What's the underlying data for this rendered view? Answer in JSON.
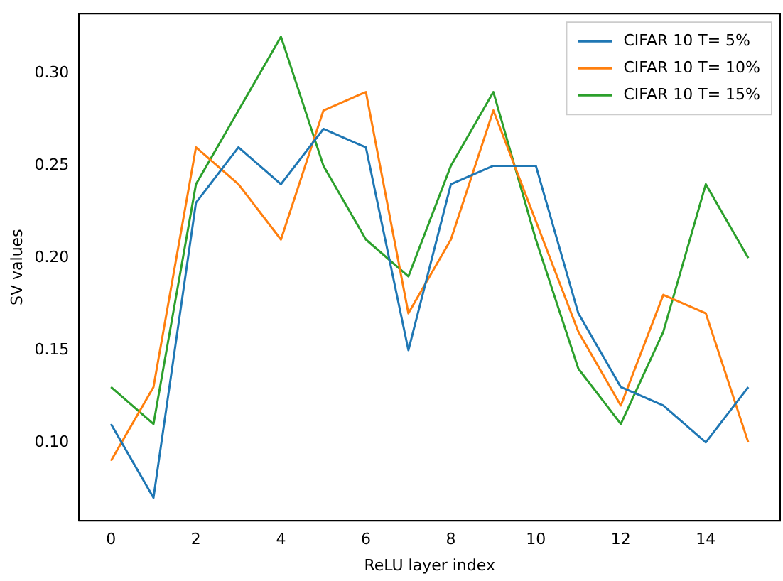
{
  "chart_data": {
    "type": "line",
    "xlabel": "ReLU layer index",
    "ylabel": "SV values",
    "x": [
      0,
      1,
      2,
      3,
      4,
      5,
      6,
      7,
      8,
      9,
      10,
      11,
      12,
      13,
      14,
      15
    ],
    "xlim": [
      -0.75,
      15.75
    ],
    "xticks": [
      0,
      2,
      4,
      6,
      8,
      10,
      12,
      14
    ],
    "ylim": [
      0.0575,
      0.3325
    ],
    "yticks": [
      {
        "value": 0.1,
        "label": "0.10"
      },
      {
        "value": 0.15,
        "label": "0.15"
      },
      {
        "value": 0.2,
        "label": "0.20"
      },
      {
        "value": 0.25,
        "label": "0.25"
      },
      {
        "value": 0.3,
        "label": "0.30"
      }
    ],
    "grid": false,
    "legend": "top right",
    "series": [
      {
        "name": "CIFAR 10 T= 5%",
        "color": "#1f77b4",
        "values": [
          0.11,
          0.07,
          0.23,
          0.26,
          0.24,
          0.27,
          0.26,
          0.15,
          0.24,
          0.25,
          0.25,
          0.17,
          0.13,
          0.12,
          0.1,
          0.13
        ]
      },
      {
        "name": "CIFAR 10 T= 10%",
        "color": "#ff7f0e",
        "values": [
          0.09,
          0.13,
          0.26,
          0.24,
          0.21,
          0.28,
          0.29,
          0.17,
          0.21,
          0.28,
          0.22,
          0.16,
          0.12,
          0.18,
          0.17,
          0.1
        ]
      },
      {
        "name": "CIFAR 10 T= 15%",
        "color": "#2ca02c",
        "values": [
          0.13,
          0.11,
          0.24,
          0.28,
          0.32,
          0.25,
          0.21,
          0.19,
          0.25,
          0.29,
          0.21,
          0.14,
          0.11,
          0.16,
          0.24,
          0.2
        ]
      }
    ]
  }
}
